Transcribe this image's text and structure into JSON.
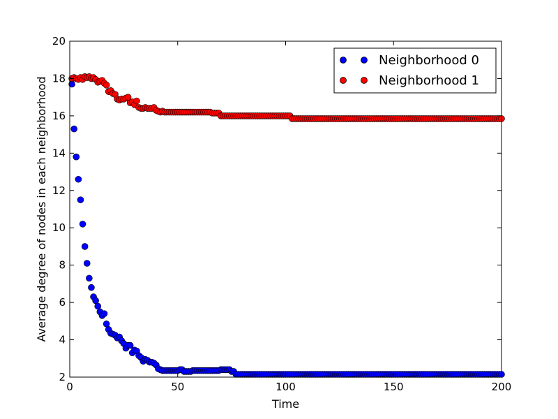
{
  "chart_data": {
    "type": "scatter",
    "title": "",
    "xlabel": "Time",
    "ylabel": "Average degree of nodes in each neighborhood",
    "xlim": [
      0,
      200
    ],
    "ylim": [
      2,
      20
    ],
    "xticks": [
      0,
      50,
      100,
      150,
      200
    ],
    "yticks": [
      2,
      4,
      6,
      8,
      10,
      12,
      14,
      16,
      18,
      20
    ],
    "x_tick_labels": [
      "0",
      "50",
      "100",
      "150",
      "200"
    ],
    "y_tick_labels": [
      "2",
      "4",
      "6",
      "8",
      "10",
      "12",
      "14",
      "16",
      "18",
      "20"
    ],
    "grid": false,
    "legend_position": "top-right",
    "series": [
      {
        "name": "Neighborhood 0",
        "color": "#0000ff",
        "segments": [
          {
            "x_start": 1,
            "x_end": 42,
            "y": [
              17.7,
              15.3,
              13.8,
              12.6,
              11.5,
              10.2,
              9.0,
              8.1,
              7.3,
              6.8,
              6.3,
              6.1,
              5.8,
              5.5,
              5.3,
              5.4,
              4.85,
              4.55,
              4.35,
              4.3,
              4.25,
              4.1,
              4.15,
              3.95,
              3.8,
              3.55,
              3.7,
              3.7,
              3.3,
              3.45,
              3.4,
              3.15,
              3.05,
              2.85,
              2.95,
              2.9,
              2.8,
              2.8,
              2.75,
              2.65,
              2.45,
              2.4
            ]
          },
          {
            "x_start": 43,
            "x_end": 50,
            "y": 2.35
          },
          {
            "x_start": 51,
            "x_end": 52,
            "y": 2.4
          },
          {
            "x_start": 53,
            "x_end": 56,
            "y": 2.3
          },
          {
            "x_start": 57,
            "x_end": 69,
            "y": 2.35
          },
          {
            "x_start": 70,
            "x_end": 74,
            "y": 2.4
          },
          {
            "x_start": 75,
            "x_end": 76,
            "y": 2.3
          },
          {
            "x_start": 77,
            "x_end": 200,
            "y": 2.15
          }
        ]
      },
      {
        "name": "Neighborhood 1",
        "color": "#ff0000",
        "segments": [
          {
            "x_start": 1,
            "x_end": 45,
            "y": [
              18.0,
              18.05,
              18.0,
              17.95,
              18.05,
              17.95,
              18.1,
              18.05,
              18.1,
              18.0,
              18.05,
              17.95,
              17.8,
              17.85,
              17.9,
              17.75,
              17.65,
              17.3,
              17.35,
              17.2,
              17.15,
              16.9,
              16.85,
              16.9,
              16.9,
              16.95,
              17.0,
              16.7,
              16.75,
              16.6,
              16.8,
              16.45,
              16.4,
              16.4,
              16.45,
              16.4,
              16.4,
              16.4,
              16.45,
              16.3,
              16.25,
              16.2,
              16.25,
              16.2,
              16.2
            ]
          },
          {
            "x_start": 46,
            "x_end": 54,
            "y": 16.2
          },
          {
            "x_start": 55,
            "x_end": 65,
            "y": 16.2
          },
          {
            "x_start": 66,
            "x_end": 69,
            "y": 16.15
          },
          {
            "x_start": 70,
            "x_end": 102,
            "y": 16.0
          },
          {
            "x_start": 103,
            "x_end": 200,
            "y": 15.85
          }
        ]
      }
    ]
  }
}
